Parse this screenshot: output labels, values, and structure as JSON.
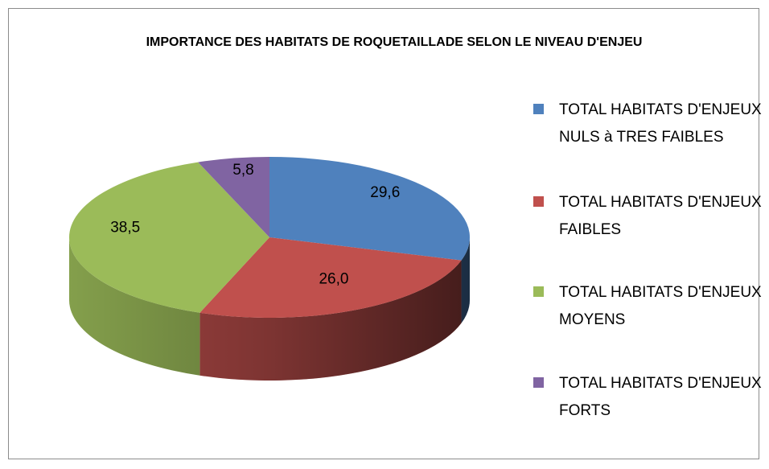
{
  "chart_data": {
    "type": "pie",
    "title": "IMPORTANCE DES HABITATS DE ROQUETAILLADE SELON LE NIVEAU D'ENJEU",
    "categories": [
      "TOTAL HABITATS D'ENJEUX NULS à TRES FAIBLES",
      "TOTAL HABITATS D'ENJEUX FAIBLES",
      "TOTAL HABITATS D'ENJEUX MOYENS",
      "TOTAL HABITATS D'ENJEUX FORTS"
    ],
    "values": [
      29.6,
      26.0,
      38.5,
      5.8
    ],
    "value_labels": [
      "29,6",
      "26,0",
      "38,5",
      "5,8"
    ],
    "colors": [
      "#4f81bd",
      "#c0504d",
      "#9bbb59",
      "#8064a2"
    ],
    "legend": "right"
  }
}
